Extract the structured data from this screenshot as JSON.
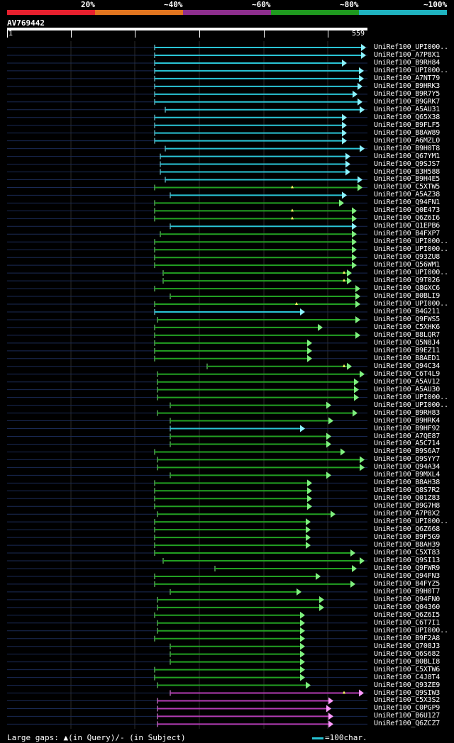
{
  "legend": [
    {
      "label": "20%",
      "color": "#e8202e"
    },
    {
      "label": "~40%",
      "color": "#e2751f"
    },
    {
      "label": "~60%",
      "color": "#8e2e8e"
    },
    {
      "label": "~80%",
      "color": "#1f9a1f"
    },
    {
      "label": "~100%",
      "color": "#1fb3c0"
    }
  ],
  "query": {
    "id": "AV769442",
    "start": "1",
    "end": "559"
  },
  "hits": [
    {
      "name": "UniRef100_UPI000..",
      "color": "cyan",
      "start": 218,
      "end": 516
    },
    {
      "name": "UniRef100_A7P8X1",
      "color": "cyan",
      "start": 218,
      "end": 516
    },
    {
      "name": "UniRef100_B9RH84",
      "color": "cyan",
      "start": 218,
      "end": 489
    },
    {
      "name": "UniRef100_UPI000..",
      "color": "cyan",
      "start": 218,
      "end": 513
    },
    {
      "name": "UniRef100_A7NT79",
      "color": "cyan",
      "start": 218,
      "end": 513
    },
    {
      "name": "UniRef100_B9HRK3",
      "color": "cyan",
      "start": 218,
      "end": 511
    },
    {
      "name": "UniRef100_B9R7Y5",
      "color": "cyan",
      "start": 218,
      "end": 504
    },
    {
      "name": "UniRef100_B9GRK7",
      "color": "cyan",
      "start": 218,
      "end": 511
    },
    {
      "name": "UniRef100_A5AU31",
      "color": "cyan",
      "start": 233,
      "end": 514
    },
    {
      "name": "UniRef100_Q65X38",
      "color": "cyan",
      "start": 218,
      "end": 489
    },
    {
      "name": "UniRef100_B9FLF5",
      "color": "cyan",
      "start": 218,
      "end": 489
    },
    {
      "name": "UniRef100_B8AW89",
      "color": "cyan",
      "start": 218,
      "end": 489
    },
    {
      "name": "UniRef100_A6MZL0",
      "color": "cyan",
      "start": 218,
      "end": 489
    },
    {
      "name": "UniRef100_B9H0T8",
      "color": "cyan",
      "start": 233,
      "end": 514
    },
    {
      "name": "UniRef100_Q67YM1",
      "color": "cyan",
      "start": 226,
      "end": 494
    },
    {
      "name": "UniRef100_Q9SJS7",
      "color": "cyan",
      "start": 226,
      "end": 494
    },
    {
      "name": "UniRef100_B3H588",
      "color": "cyan",
      "start": 226,
      "end": 494
    },
    {
      "name": "UniRef100_B9H4E5",
      "color": "cyan",
      "start": 233,
      "end": 511
    },
    {
      "name": "UniRef100_C5XTW5",
      "color": "green",
      "start": 218,
      "end": 511,
      "mark": 412
    },
    {
      "name": "UniRef100_A5AZ38",
      "color": "cyan",
      "start": 240,
      "end": 489
    },
    {
      "name": "UniRef100_Q94FN1",
      "color": "green",
      "start": 218,
      "end": 485
    },
    {
      "name": "UniRef100_Q0E473",
      "color": "green",
      "start": 218,
      "end": 503,
      "mark": 412
    },
    {
      "name": "UniRef100_Q6Z6I6",
      "color": "green",
      "start": 218,
      "end": 503,
      "mark": 412
    },
    {
      "name": "UniRef100_Q1EPB6",
      "color": "cyan",
      "start": 240,
      "end": 503
    },
    {
      "name": "UniRef100_B4FXP7",
      "color": "green",
      "start": 226,
      "end": 503
    },
    {
      "name": "UniRef100_UPI000..",
      "color": "green",
      "start": 218,
      "end": 503
    },
    {
      "name": "UniRef100_UPI000..",
      "color": "green",
      "start": 218,
      "end": 503
    },
    {
      "name": "UniRef100_Q93ZU8",
      "color": "green",
      "start": 218,
      "end": 503
    },
    {
      "name": "UniRef100_Q56WM1",
      "color": "green",
      "start": 218,
      "end": 503
    },
    {
      "name": "UniRef100_UPI000..",
      "color": "green",
      "start": 230,
      "end": 496,
      "mark": 485
    },
    {
      "name": "UniRef100_Q9T026",
      "color": "green",
      "start": 230,
      "end": 496,
      "mark": 485
    },
    {
      "name": "UniRef100_Q8GXC6",
      "color": "green",
      "start": 218,
      "end": 508
    },
    {
      "name": "UniRef100_B0BLI9",
      "color": "green",
      "start": 240,
      "end": 508
    },
    {
      "name": "UniRef100_UPI000..",
      "color": "green",
      "start": 218,
      "end": 508,
      "mark": 418
    },
    {
      "name": "UniRef100_B4G211",
      "color": "cyan",
      "start": 218,
      "end": 430
    },
    {
      "name": "UniRef100_Q9FWS5",
      "color": "green",
      "start": 222,
      "end": 508
    },
    {
      "name": "UniRef100_C5XHK6",
      "color": "green",
      "start": 218,
      "end": 455
    },
    {
      "name": "UniRef100_B8LQR7",
      "color": "green",
      "start": 218,
      "end": 508
    },
    {
      "name": "UniRef100_Q5N8J4",
      "color": "green",
      "start": 218,
      "end": 440
    },
    {
      "name": "UniRef100_B9EZ11",
      "color": "green",
      "start": 218,
      "end": 440
    },
    {
      "name": "UniRef100_B8AED1",
      "color": "green",
      "start": 218,
      "end": 440
    },
    {
      "name": "UniRef100_Q94C34",
      "color": "green",
      "start": 292,
      "end": 496,
      "mark": 485
    },
    {
      "name": "UniRef100_C6T4L9",
      "color": "green",
      "start": 222,
      "end": 514
    },
    {
      "name": "UniRef100_A5AV12",
      "color": "green",
      "start": 222,
      "end": 506
    },
    {
      "name": "UniRef100_A5AU30",
      "color": "green",
      "start": 222,
      "end": 506
    },
    {
      "name": "UniRef100_UPI000..",
      "color": "green",
      "start": 222,
      "end": 506
    },
    {
      "name": "UniRef100_UPI000..",
      "color": "green",
      "start": 240,
      "end": 467
    },
    {
      "name": "UniRef100_B9RH83",
      "color": "green",
      "start": 222,
      "end": 504
    },
    {
      "name": "UniRef100_B9HRK4",
      "color": "green",
      "start": 240,
      "end": 470
    },
    {
      "name": "UniRef100_B9HF92",
      "color": "cyan",
      "start": 240,
      "end": 430
    },
    {
      "name": "UniRef100_A7QE87",
      "color": "green",
      "start": 240,
      "end": 467
    },
    {
      "name": "UniRef100_A5C714",
      "color": "green",
      "start": 240,
      "end": 467
    },
    {
      "name": "UniRef100_B9S6A7",
      "color": "green",
      "start": 218,
      "end": 487
    },
    {
      "name": "UniRef100_Q9SYY7",
      "color": "green",
      "start": 222,
      "end": 514
    },
    {
      "name": "UniRef100_Q94A34",
      "color": "green",
      "start": 222,
      "end": 514
    },
    {
      "name": "UniRef100_B9MXL4",
      "color": "green",
      "start": 240,
      "end": 467
    },
    {
      "name": "UniRef100_B8AH38",
      "color": "green",
      "start": 218,
      "end": 440
    },
    {
      "name": "UniRef100_Q8S7R2",
      "color": "green",
      "start": 218,
      "end": 440
    },
    {
      "name": "UniRef100_Q01Z83",
      "color": "green",
      "start": 218,
      "end": 440
    },
    {
      "name": "UniRef100_B9G7H8",
      "color": "green",
      "start": 218,
      "end": 440
    },
    {
      "name": "UniRef100_A7P8X2",
      "color": "green",
      "start": 222,
      "end": 473
    },
    {
      "name": "UniRef100_UPI000..",
      "color": "green",
      "start": 218,
      "end": 438
    },
    {
      "name": "UniRef100_Q6Z668",
      "color": "green",
      "start": 218,
      "end": 438
    },
    {
      "name": "UniRef100_B9F5G9",
      "color": "green",
      "start": 218,
      "end": 438
    },
    {
      "name": "UniRef100_B8AH39",
      "color": "green",
      "start": 218,
      "end": 438
    },
    {
      "name": "UniRef100_C5XT83",
      "color": "green",
      "start": 218,
      "end": 501
    },
    {
      "name": "UniRef100_Q9SI13",
      "color": "green",
      "start": 230,
      "end": 514
    },
    {
      "name": "UniRef100_Q9FWR9",
      "color": "green",
      "start": 303,
      "end": 503
    },
    {
      "name": "UniRef100_Q94FN3",
      "color": "green",
      "start": 218,
      "end": 452
    },
    {
      "name": "UniRef100_B4FYZ5",
      "color": "green",
      "start": 218,
      "end": 501
    },
    {
      "name": "UniRef100_B9H0T7",
      "color": "green",
      "start": 240,
      "end": 425
    },
    {
      "name": "UniRef100_Q94FN0",
      "color": "green",
      "start": 222,
      "end": 457
    },
    {
      "name": "UniRef100_Q04360",
      "color": "green",
      "start": 222,
      "end": 457
    },
    {
      "name": "UniRef100_Q6Z6I5",
      "color": "green",
      "start": 218,
      "end": 430
    },
    {
      "name": "UniRef100_C6T7I1",
      "color": "green",
      "start": 222,
      "end": 430
    },
    {
      "name": "UniRef100_UPI000..",
      "color": "green",
      "start": 222,
      "end": 430
    },
    {
      "name": "UniRef100_B9F2A8",
      "color": "green",
      "start": 218,
      "end": 430
    },
    {
      "name": "UniRef100_Q708J3",
      "color": "green",
      "start": 240,
      "end": 430
    },
    {
      "name": "UniRef100_Q6S682",
      "color": "green",
      "start": 240,
      "end": 430
    },
    {
      "name": "UniRef100_B0BLI8",
      "color": "green",
      "start": 240,
      "end": 430
    },
    {
      "name": "UniRef100_C5XTW6",
      "color": "green",
      "start": 218,
      "end": 430
    },
    {
      "name": "UniRef100_C4J8T4",
      "color": "green",
      "start": 218,
      "end": 430
    },
    {
      "name": "UniRef100_Q93ZE9",
      "color": "green",
      "start": 222,
      "end": 438
    },
    {
      "name": "UniRef100_Q9SIW3",
      "color": "magenta",
      "start": 240,
      "end": 513,
      "mark": 485
    },
    {
      "name": "UniRef100_C5X3S2",
      "color": "magenta",
      "start": 222,
      "end": 470
    },
    {
      "name": "UniRef100_C0PGP9",
      "color": "magenta",
      "start": 222,
      "end": 467
    },
    {
      "name": "UniRef100_B6U127",
      "color": "magenta",
      "start": 222,
      "end": 470
    },
    {
      "name": "UniRef100_Q6ZCZ7",
      "color": "magenta",
      "start": 222,
      "end": 470
    }
  ],
  "colors": {
    "cyan": "#2ac4d6",
    "green": "#22a022",
    "magenta": "#b33cb5",
    "green_head": "#7ff07f",
    "cyan_head": "#8cf2ff",
    "magenta_head": "#ff9aff",
    "track": "#1a2a55"
  },
  "footer": {
    "text": "Large gaps: ▲(in Query)/- (in Subject)"
  },
  "scale": {
    "text": "=100char."
  }
}
